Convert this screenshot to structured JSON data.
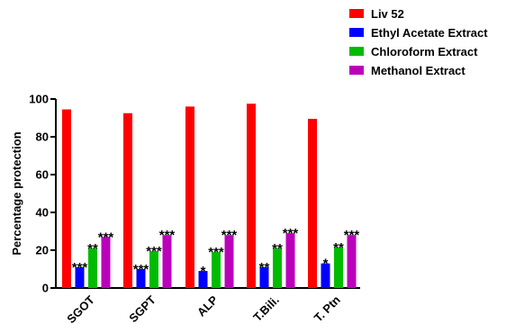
{
  "chart_data": {
    "type": "bar",
    "title": "",
    "xlabel": "",
    "ylabel": "Percentage protection",
    "ylim": [
      0,
      100
    ],
    "yticks": [
      0,
      20,
      40,
      60,
      80,
      100
    ],
    "grid": false,
    "legend_position": "top-right",
    "categories": [
      "SGOT",
      "SGPT",
      "ALP",
      "T.Bili.",
      "T. Ptn"
    ],
    "series": [
      {
        "name": "Liv 52",
        "color": "#ff0000",
        "values": [
          94.5,
          92.5,
          96,
          97.5,
          89.5
        ],
        "significance": [
          "",
          "",
          "",
          "",
          ""
        ]
      },
      {
        "name": "Ethyl Acetate Extract",
        "color": "#0000ff",
        "values": [
          11,
          10,
          9,
          11,
          13
        ],
        "significance": [
          "***",
          "***",
          "*",
          "**",
          "*"
        ]
      },
      {
        "name": "Chloroform Extract",
        "color": "#00bb00",
        "values": [
          21,
          19.5,
          19,
          21,
          21.5
        ],
        "significance": [
          "**",
          "***",
          "***",
          "**",
          "**"
        ]
      },
      {
        "name": "Methanol Extract",
        "color": "#bb00bb",
        "values": [
          27,
          28,
          28,
          29,
          28
        ],
        "significance": [
          "***",
          "***",
          "***",
          "***",
          "***"
        ]
      }
    ]
  }
}
